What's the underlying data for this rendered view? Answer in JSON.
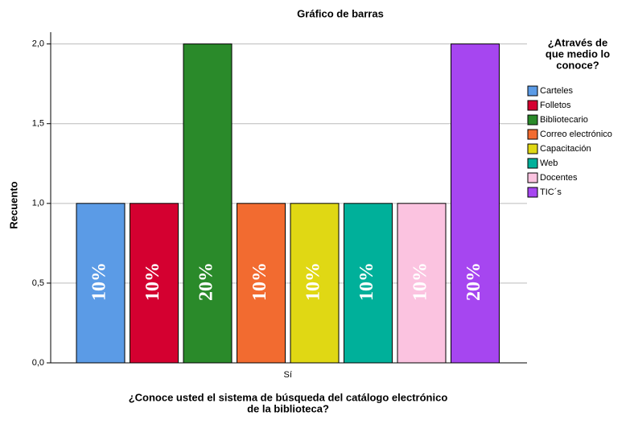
{
  "chart_data": {
    "type": "bar",
    "title": "Gráfico de barras",
    "ylabel": "Recuento",
    "xlabel": [
      "¿Conoce usted el sistema de búsqueda del catálogo electrónico",
      "de la biblioteca?"
    ],
    "legend_title": [
      "¿Através de",
      "que medio lo",
      "conoce?"
    ],
    "legend_position": "right",
    "grid": true,
    "categories": [
      "Sí"
    ],
    "ylim": [
      0,
      2.2
    ],
    "yticks": [
      {
        "value": 0,
        "label": "0,0"
      },
      {
        "value": 0.5,
        "label": "0,5"
      },
      {
        "value": 1,
        "label": "1,0"
      },
      {
        "value": 1.5,
        "label": "1,5"
      },
      {
        "value": 2,
        "label": "2,0"
      }
    ],
    "series": [
      {
        "name": "Carteles",
        "color": "#5b9be6",
        "values": [
          1
        ],
        "value_labels": [
          "10%"
        ]
      },
      {
        "name": "Folletos",
        "color": "#d40030",
        "values": [
          1
        ],
        "value_labels": [
          "10%"
        ]
      },
      {
        "name": "Bibliotecario",
        "color": "#2a8a2a",
        "values": [
          2
        ],
        "value_labels": [
          "20%"
        ]
      },
      {
        "name": "Correo electrónico",
        "color": "#f26b30",
        "values": [
          1
        ],
        "value_labels": [
          "10%"
        ]
      },
      {
        "name": "Capacitación",
        "color": "#e0d814",
        "values": [
          1
        ],
        "value_labels": [
          "10%"
        ]
      },
      {
        "name": "Web",
        "color": "#00b09a",
        "values": [
          1
        ],
        "value_labels": [
          "10%"
        ]
      },
      {
        "name": "Docentes",
        "color": "#fbc3e0",
        "values": [
          1
        ],
        "value_labels": [
          "10%"
        ]
      },
      {
        "name": "TIC´s",
        "color": "#a646f0",
        "values": [
          2
        ],
        "value_labels": [
          "20%"
        ]
      }
    ]
  }
}
